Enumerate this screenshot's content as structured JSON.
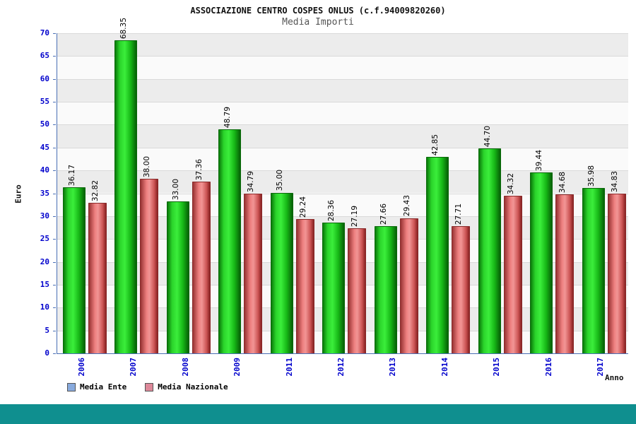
{
  "header": {
    "title": "ASSOCIAZIONE CENTRO COSPES ONLUS (c.f.94009820260)",
    "subtitle": "Media Importi"
  },
  "chart_data": {
    "type": "bar",
    "title": "Media Importi",
    "xlabel": "Anno",
    "ylabel": "Euro",
    "ylim": [
      0,
      70
    ],
    "ytick_step": 5,
    "grid": true,
    "legend_position": "bottom-left",
    "categories": [
      "2006",
      "2007",
      "2008",
      "2009",
      "2011",
      "2012",
      "2013",
      "2014",
      "2015",
      "2016",
      "2017"
    ],
    "series": [
      {
        "name": "Media Ente",
        "values": [
          36.17,
          68.35,
          33.0,
          48.79,
          35.0,
          28.36,
          27.66,
          42.85,
          44.7,
          39.44,
          35.98
        ]
      },
      {
        "name": "Media Nazionale",
        "values": [
          32.82,
          38.0,
          37.36,
          34.79,
          29.24,
          27.19,
          29.43,
          27.71,
          34.32,
          34.68,
          34.83
        ]
      }
    ]
  },
  "legend": {
    "items": [
      {
        "label": "Media Ente",
        "swatch": "#88aadd"
      },
      {
        "label": "Media Nazionale",
        "swatch": "#dd8899"
      }
    ]
  },
  "colors": {
    "bar_green": "#2bd42b",
    "bar_red": "#e06666",
    "tick_label": "#0000cc",
    "axis": "#4a6fb5",
    "band_gray": "#ececec",
    "footer_teal": "#0f8f8f"
  }
}
